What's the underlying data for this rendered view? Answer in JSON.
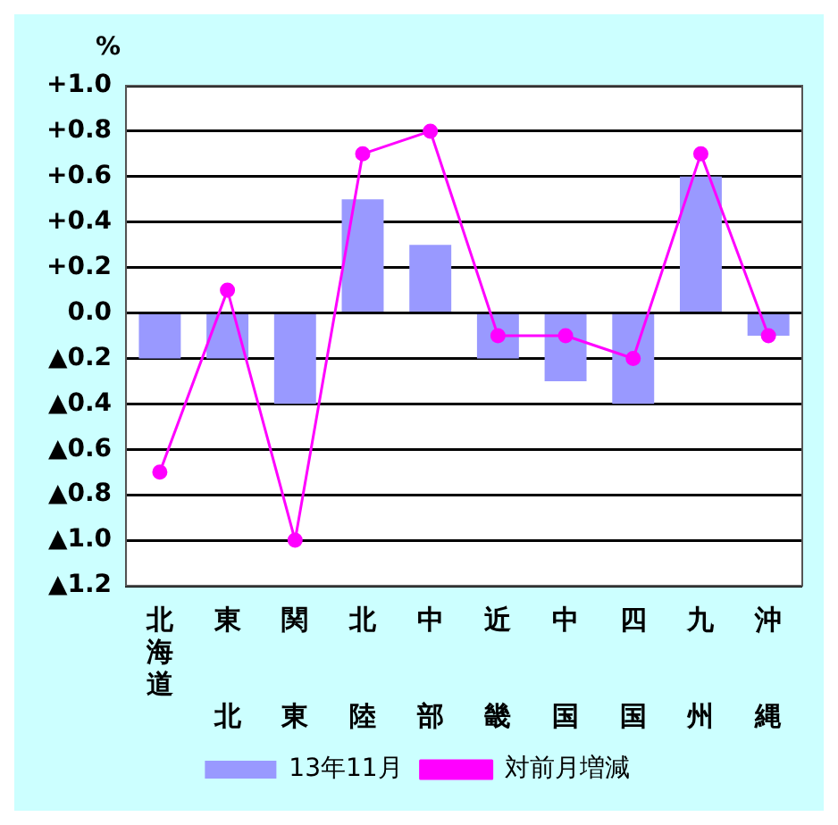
{
  "chart_data": {
    "type": "bar",
    "ylabel": "%",
    "categories": [
      "北海道",
      "東北",
      "関東",
      "北陸",
      "中部",
      "近畿",
      "中国",
      "四国",
      "九州",
      "沖縄"
    ],
    "series": [
      {
        "name": "13年11月",
        "color": "#9999ff",
        "values": [
          -0.2,
          -0.2,
          -0.4,
          0.5,
          0.3,
          -0.2,
          -0.3,
          -0.4,
          0.6,
          -0.1
        ]
      },
      {
        "name": "対前月増減",
        "type": "line",
        "color": "#ff00ff",
        "marker": "circle",
        "values": [
          -0.7,
          0.1,
          -1.0,
          0.7,
          0.8,
          -0.1,
          -0.1,
          -0.2,
          0.7,
          -0.1
        ]
      }
    ],
    "ylim": [
      -1.2,
      1.0
    ],
    "yticks": [
      {
        "value": 1.0,
        "label": "+1.0"
      },
      {
        "value": 0.8,
        "label": "+0.8"
      },
      {
        "value": 0.6,
        "label": "+0.6"
      },
      {
        "value": 0.4,
        "label": "+0.4"
      },
      {
        "value": 0.2,
        "label": "+0.2"
      },
      {
        "value": 0,
        "label": "0.0"
      },
      {
        "value": -0.2,
        "label": "▲0.2"
      },
      {
        "value": -0.4,
        "label": "▲0.4"
      },
      {
        "value": -0.6,
        "label": "▲0.6"
      },
      {
        "value": -0.8,
        "label": "▲0.8"
      },
      {
        "value": -1.0,
        "label": "▲1.0"
      },
      {
        "value": -1.2,
        "label": "▲1.2"
      }
    ],
    "grid": "y",
    "legend": "bottom"
  }
}
